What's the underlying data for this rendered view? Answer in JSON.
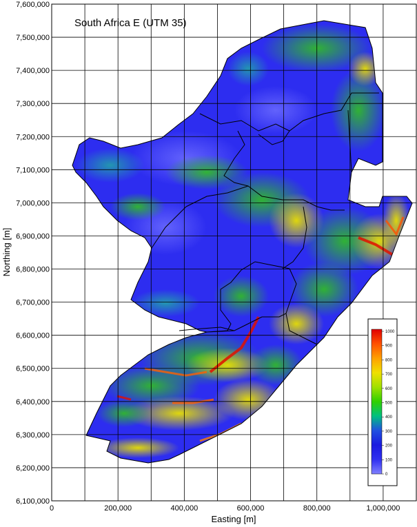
{
  "title": "South Africa E (UTM 35)",
  "x_axis": {
    "label": "Easting [m]",
    "ticks": [
      "0",
      "200,000",
      "400,000",
      "600,000",
      "800,000",
      "1,000,000"
    ]
  },
  "y_axis": {
    "label": "Northing [m]",
    "ticks": [
      "7,600,000",
      "7,500,000",
      "7,400,000",
      "7,300,000",
      "7,200,000",
      "7,100,000",
      "7,000,000",
      "6,900,000",
      "6,800,000",
      "6,700,000",
      "6,600,000",
      "6,500,000",
      "6,400,000",
      "6,300,000",
      "6,200,000",
      "6,100,000"
    ]
  },
  "colorbar": {
    "ticks": [
      "1000",
      "900",
      "800",
      "700",
      "600",
      "500",
      "400",
      "300",
      "200",
      "100",
      "0"
    ],
    "colors": [
      "#e00000",
      "#ff5000",
      "#ffa000",
      "#f0e000",
      "#a0e000",
      "#30d000",
      "#00c080",
      "#2050e0",
      "#1a1ae0",
      "#3030f0",
      "#8080ff"
    ]
  },
  "colors": {
    "land_low": "#2d2df0",
    "land_mid": "#20c040",
    "land_high": "#e8e000",
    "peak": "#e01000",
    "border": "#000000",
    "grid": "#000000"
  }
}
